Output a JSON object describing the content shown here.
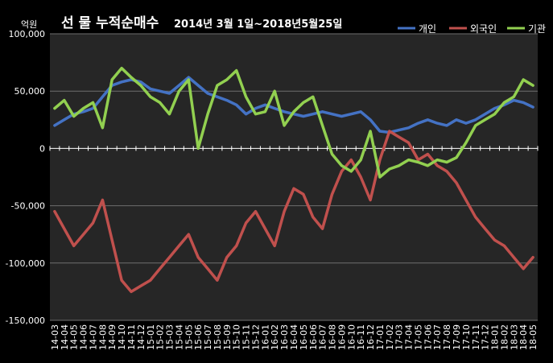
{
  "chart_data": {
    "type": "line",
    "title_main": "선 물 누적순매수",
    "title_range": "2014년 3월 1일~2018년5월25일",
    "unit_label": "억원",
    "ylim": [
      -150000,
      100000
    ],
    "y_ticks": [
      100000,
      50000,
      0,
      -50000,
      -100000,
      -150000
    ],
    "y_tick_labels": [
      "100,000",
      "50,000",
      "0",
      "-50,000",
      "-100,000",
      "-150,000"
    ],
    "grid": true,
    "legend_position": "top-right",
    "x_tick_labels": [
      "14-03",
      "14-04",
      "14-05",
      "14-06",
      "14-07",
      "14-08",
      "14-09",
      "14-10",
      "14-11",
      "14-12",
      "15-01",
      "15-02",
      "15-03",
      "15-04",
      "15-05",
      "15-06",
      "15-07",
      "15-08",
      "15-09",
      "15-10",
      "15-11",
      "15-12",
      "16-01",
      "16-02",
      "16-03",
      "16-04",
      "16-05",
      "16-06",
      "16-07",
      "16-08",
      "16-09",
      "16-10",
      "16-11",
      "16-12",
      "17-01",
      "17-02",
      "17-03",
      "17-04",
      "17-05",
      "17-06",
      "17-07",
      "17-08",
      "17-09",
      "17-10",
      "17-11",
      "17-12",
      "18-01",
      "18-02",
      "18-03",
      "18-04",
      "18-05"
    ],
    "series": [
      {
        "name": "개인",
        "color": "#4472c4",
        "values": [
          20000,
          25000,
          30000,
          32000,
          35000,
          45000,
          55000,
          58000,
          60000,
          58000,
          52000,
          50000,
          48000,
          55000,
          62000,
          55000,
          48000,
          45000,
          42000,
          38000,
          30000,
          35000,
          38000,
          35000,
          32000,
          30000,
          28000,
          30000,
          32000,
          30000,
          28000,
          30000,
          32000,
          25000,
          15000,
          14000,
          16000,
          18000,
          22000,
          25000,
          22000,
          20000,
          25000,
          22000,
          25000,
          30000,
          35000,
          38000,
          42000,
          40000,
          36000
        ]
      },
      {
        "name": "외국인",
        "color": "#c0504d",
        "values": [
          -55000,
          -70000,
          -85000,
          -75000,
          -65000,
          -45000,
          -80000,
          -115000,
          -125000,
          -120000,
          -115000,
          -105000,
          -95000,
          -85000,
          -75000,
          -95000,
          -105000,
          -115000,
          -95000,
          -85000,
          -65000,
          -55000,
          -70000,
          -85000,
          -55000,
          -35000,
          -40000,
          -60000,
          -70000,
          -40000,
          -20000,
          -10000,
          -25000,
          -45000,
          -10000,
          15000,
          10000,
          5000,
          -10000,
          -5000,
          -15000,
          -20000,
          -30000,
          -45000,
          -60000,
          -70000,
          -80000,
          -85000,
          -95000,
          -105000,
          -95000
        ]
      },
      {
        "name": "기관",
        "color": "#92d050",
        "values": [
          35000,
          42000,
          28000,
          35000,
          40000,
          18000,
          60000,
          70000,
          62000,
          55000,
          45000,
          40000,
          30000,
          50000,
          60000,
          0,
          30000,
          55000,
          60000,
          68000,
          45000,
          30000,
          32000,
          50000,
          20000,
          32000,
          40000,
          45000,
          20000,
          -5000,
          -15000,
          -20000,
          -10000,
          15000,
          -25000,
          -18000,
          -15000,
          -10000,
          -12000,
          -15000,
          -10000,
          -12000,
          -8000,
          5000,
          20000,
          25000,
          30000,
          40000,
          45000,
          60000,
          55000
        ]
      }
    ]
  }
}
